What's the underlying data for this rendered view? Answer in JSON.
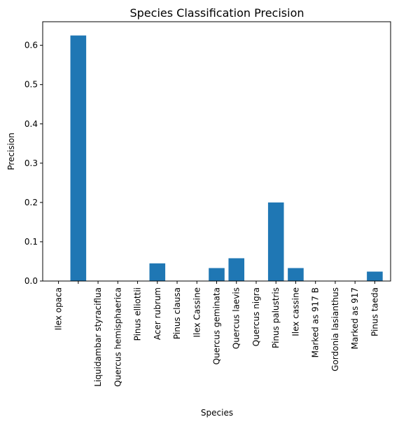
{
  "chart_data": {
    "type": "bar",
    "title": "Species Classification Precision",
    "xlabel": "Species",
    "ylabel": "Precision",
    "ylim": [
      0,
      0.66
    ],
    "yticks": [
      0.0,
      0.1,
      0.2,
      0.3,
      0.4,
      0.5,
      0.6
    ],
    "ytick_labels": [
      "0.0",
      "0.1",
      "0.2",
      "0.3",
      "0.4",
      "0.5",
      "0.6"
    ],
    "categories": [
      "Ilex opaca",
      "",
      "Liquidambar styraciflua",
      "Quercus hemisphaerica",
      "Pinus elliottii",
      "Acer rubrum",
      "Pinus clausa",
      "Ilex Cassine",
      "Quercus geminata",
      "Quercus laevis",
      "Quercus nigra",
      "Pinus palustris",
      "Ilex cassine",
      "Marked as 917 B",
      "Gordonia lasianthus",
      "Marked as 917",
      "Pinus taeda"
    ],
    "values": [
      0.0,
      0.625,
      0.0,
      0.0,
      0.0,
      0.045,
      0.0,
      0.0,
      0.033,
      0.058,
      0.0,
      0.2,
      0.033,
      0.0,
      0.0,
      0.0,
      0.024
    ],
    "grid": false,
    "bar_color": "#1f77b4"
  }
}
